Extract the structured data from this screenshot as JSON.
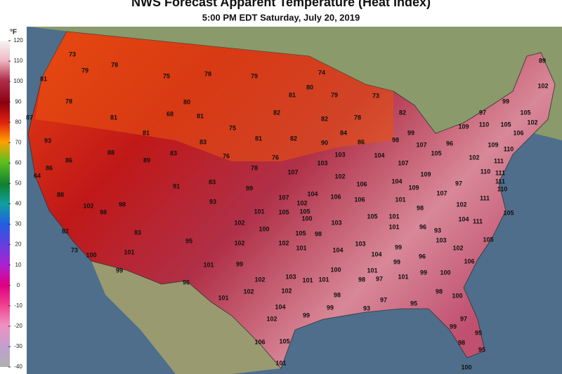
{
  "header": {
    "title": "NWS Forecast Apparent Temperature (Heat Index)",
    "subtitle": "5:00 PM EDT Saturday, July 20, 2019"
  },
  "legend": {
    "unit": "°F",
    "range": [
      -40,
      120
    ],
    "ticks": [
      120,
      110,
      100,
      90,
      80,
      70,
      60,
      50,
      40,
      30,
      20,
      10,
      0,
      -10,
      -20,
      -30,
      -40
    ]
  },
  "map": {
    "labels": [
      73,
      79,
      78,
      81,
      75,
      78,
      79,
      74,
      89,
      102,
      80,
      81,
      79,
      73,
      78,
      80,
      99,
      82,
      82,
      97,
      105,
      87,
      81,
      68,
      81,
      82,
      78,
      105,
      110,
      109,
      102,
      75,
      84,
      106,
      81,
      99,
      93,
      83,
      81,
      82,
      90,
      86,
      98,
      107,
      96,
      109,
      88,
      83,
      76,
      76,
      103,
      104,
      105,
      102,
      110,
      89,
      86,
      103,
      107,
      111,
      78,
      107,
      109,
      110,
      111,
      86,
      102,
      106,
      104,
      97,
      111,
      64,
      91,
      83,
      99,
      109,
      107,
      110,
      88,
      104,
      106,
      107,
      106,
      101,
      111,
      102,
      98,
      93,
      102,
      98,
      102,
      98,
      101,
      105,
      105,
      105,
      101,
      105,
      102,
      100,
      103,
      104,
      111,
      82,
      83,
      100,
      105,
      98,
      101,
      96,
      93,
      95,
      103,
      105,
      102,
      102,
      103,
      99,
      102,
      73,
      101,
      100,
      101,
      104,
      104,
      96,
      101,
      99,
      99,
      106,
      99,
      100,
      101,
      99,
      100,
      96,
      102,
      103,
      101,
      101,
      98,
      97,
      101,
      102,
      102,
      98,
      98,
      101,
      97,
      95,
      100,
      104,
      99,
      99,
      93,
      102,
      97,
      99,
      95,
      106,
      105,
      98,
      95,
      101,
      100
    ]
  }
}
